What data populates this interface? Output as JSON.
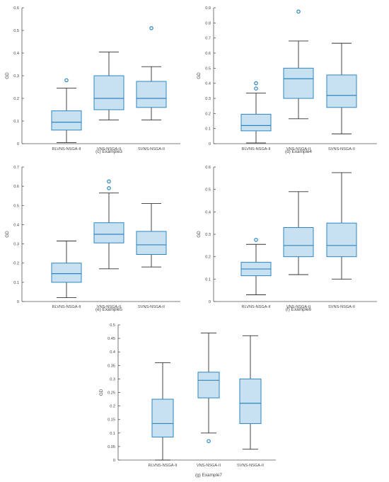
{
  "chart_data": [
    {
      "type": "box",
      "caption": "(c) Example3",
      "ylabel": "GD",
      "ylim": [
        0,
        0.6
      ],
      "yticks": [
        "0",
        "0.1",
        "0.2",
        "0.3",
        "0.4",
        "0.5",
        "0.6"
      ],
      "categories": [
        "RLVNS-NSGA-II",
        "VNS-NSGA-II",
        "SVNS-NSGA-II"
      ],
      "boxes": [
        {
          "min": 0.005,
          "q1": 0.06,
          "median": 0.095,
          "q3": 0.145,
          "max": 0.245,
          "outliers": [
            0.28
          ]
        },
        {
          "min": 0.105,
          "q1": 0.15,
          "median": 0.2,
          "q3": 0.3,
          "max": 0.405,
          "outliers": []
        },
        {
          "min": 0.105,
          "q1": 0.16,
          "median": 0.2,
          "q3": 0.275,
          "max": 0.34,
          "outliers": [
            0.51
          ]
        }
      ]
    },
    {
      "type": "box",
      "caption": "(d) Example4",
      "ylabel": "GD",
      "ylim": [
        0,
        0.9
      ],
      "yticks": [
        "0",
        "0.1",
        "0.2",
        "0.3",
        "0.4",
        "0.5",
        "0.6",
        "0.7",
        "0.8",
        "0.9"
      ],
      "categories": [
        "RLVNS-NSGA-II",
        "VNS-NSGA-II",
        "SVNS-NSGA-II"
      ],
      "boxes": [
        {
          "min": 0.005,
          "q1": 0.085,
          "median": 0.12,
          "q3": 0.195,
          "max": 0.335,
          "outliers": [
            0.365,
            0.4
          ]
        },
        {
          "min": 0.165,
          "q1": 0.3,
          "median": 0.43,
          "q3": 0.5,
          "max": 0.68,
          "outliers": [
            0.875
          ]
        },
        {
          "min": 0.065,
          "q1": 0.24,
          "median": 0.32,
          "q3": 0.455,
          "max": 0.665,
          "outliers": []
        }
      ]
    },
    {
      "type": "box",
      "caption": "(e) Example5",
      "ylabel": "GD",
      "ylim": [
        0,
        0.7
      ],
      "yticks": [
        "0",
        "0.1",
        "0.2",
        "0.3",
        "0.4",
        "0.5",
        "0.6",
        "0.7"
      ],
      "categories": [
        "RLVNS-NSGA-II",
        "VNS-NSGA-II",
        "SVNS-NSGA-II"
      ],
      "boxes": [
        {
          "min": 0.02,
          "q1": 0.1,
          "median": 0.145,
          "q3": 0.2,
          "max": 0.315,
          "outliers": []
        },
        {
          "min": 0.17,
          "q1": 0.305,
          "median": 0.35,
          "q3": 0.41,
          "max": 0.565,
          "outliers": [
            0.59,
            0.625
          ]
        },
        {
          "min": 0.18,
          "q1": 0.245,
          "median": 0.295,
          "q3": 0.365,
          "max": 0.51,
          "outliers": []
        }
      ]
    },
    {
      "type": "box",
      "caption": "(f) Example6",
      "ylabel": "GD",
      "ylim": [
        0,
        0.6
      ],
      "yticks": [
        "0",
        "0.1",
        "0.2",
        "0.3",
        "0.4",
        "0.5",
        "0.6"
      ],
      "categories": [
        "RLVNS-NSGA-II",
        "VNS-NSGA-II",
        "SVNS-NSGA-II"
      ],
      "boxes": [
        {
          "min": 0.03,
          "q1": 0.115,
          "median": 0.145,
          "q3": 0.175,
          "max": 0.255,
          "outliers": [
            0.275
          ]
        },
        {
          "min": 0.12,
          "q1": 0.2,
          "median": 0.25,
          "q3": 0.33,
          "max": 0.49,
          "outliers": []
        },
        {
          "min": 0.1,
          "q1": 0.2,
          "median": 0.25,
          "q3": 0.35,
          "max": 0.575,
          "outliers": []
        }
      ]
    },
    {
      "type": "box",
      "caption": "(g) Example7",
      "ylabel": "GD",
      "ylim": [
        0,
        0.5
      ],
      "yticks": [
        "0",
        "0.05",
        "0.1",
        "0.15",
        "0.2",
        "0.25",
        "0.3",
        "0.35",
        "0.4",
        "0.45",
        "0.5"
      ],
      "categories": [
        "RLVNS-NSGA-II",
        "VNS-NSGA-II",
        "SVNS-NSGA-II"
      ],
      "boxes": [
        {
          "min": 0.0,
          "q1": 0.085,
          "median": 0.135,
          "q3": 0.225,
          "max": 0.36,
          "outliers": []
        },
        {
          "min": 0.1,
          "q1": 0.23,
          "median": 0.295,
          "q3": 0.325,
          "max": 0.47,
          "outliers": [
            0.07
          ]
        },
        {
          "min": 0.04,
          "q1": 0.135,
          "median": 0.21,
          "q3": 0.3,
          "max": 0.46,
          "outliers": []
        }
      ]
    }
  ]
}
